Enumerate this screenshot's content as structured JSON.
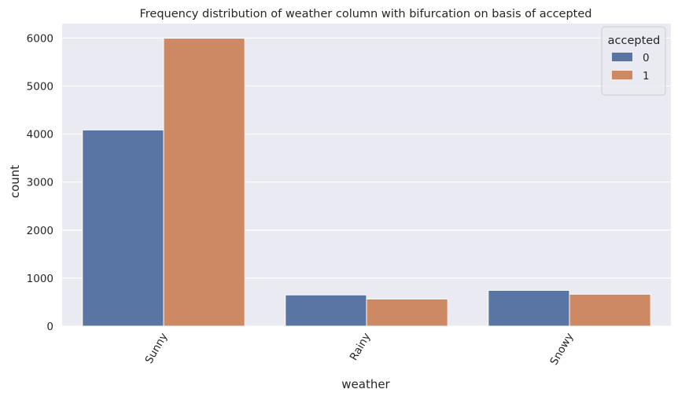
{
  "chart_data": {
    "type": "bar",
    "title": "Frequency distribution of weather column with bifurcation on basis of accepted",
    "xlabel": "weather",
    "ylabel": "count",
    "categories": [
      "Sunny",
      "Rainy",
      "Snowy"
    ],
    "series": [
      {
        "name": "0",
        "color": "#5875a4",
        "values": [
          4085,
          650,
          745
        ]
      },
      {
        "name": "1",
        "color": "#cc8963",
        "values": [
          5995,
          565,
          665
        ]
      }
    ],
    "yticks": [
      0,
      1000,
      2000,
      3000,
      4000,
      5000,
      6000
    ],
    "ylim": [
      0,
      6300
    ],
    "grid": true,
    "legend": {
      "title": "accepted",
      "position": "top-right"
    },
    "style": {
      "background": "#eaeaf2",
      "grid_color": "#ffffff"
    }
  }
}
